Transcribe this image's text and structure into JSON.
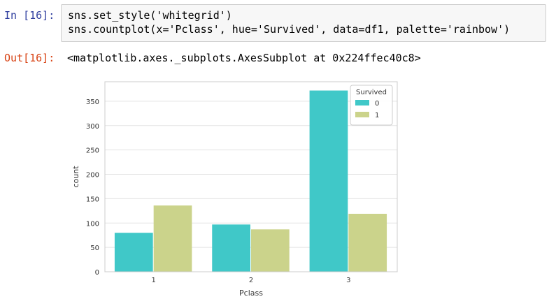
{
  "cell": {
    "in_prompt": "In [16]:",
    "out_prompt": "Out[16]:",
    "code_lines": [
      "sns.set_style('whitegrid')",
      "sns.countplot(x='Pclass', hue='Survived', data=df1, palette='rainbow')"
    ],
    "output_text": "<matplotlib.axes._subplots.AxesSubplot at 0x224ffec40c8>"
  },
  "chart_data": {
    "type": "bar",
    "categories": [
      "1",
      "2",
      "3"
    ],
    "series": [
      {
        "name": "0",
        "values": [
          80,
          97,
          372
        ],
        "color": "#40c8c8"
      },
      {
        "name": "1",
        "values": [
          136,
          87,
          119
        ],
        "color": "#cbd38b"
      }
    ],
    "xlabel": "Pclass",
    "ylabel": "count",
    "ylim": [
      0,
      390
    ],
    "yticks": [
      0,
      50,
      100,
      150,
      200,
      250,
      300,
      350
    ],
    "grid": true,
    "legend": {
      "title": "Survived",
      "placement": "top-right"
    }
  }
}
